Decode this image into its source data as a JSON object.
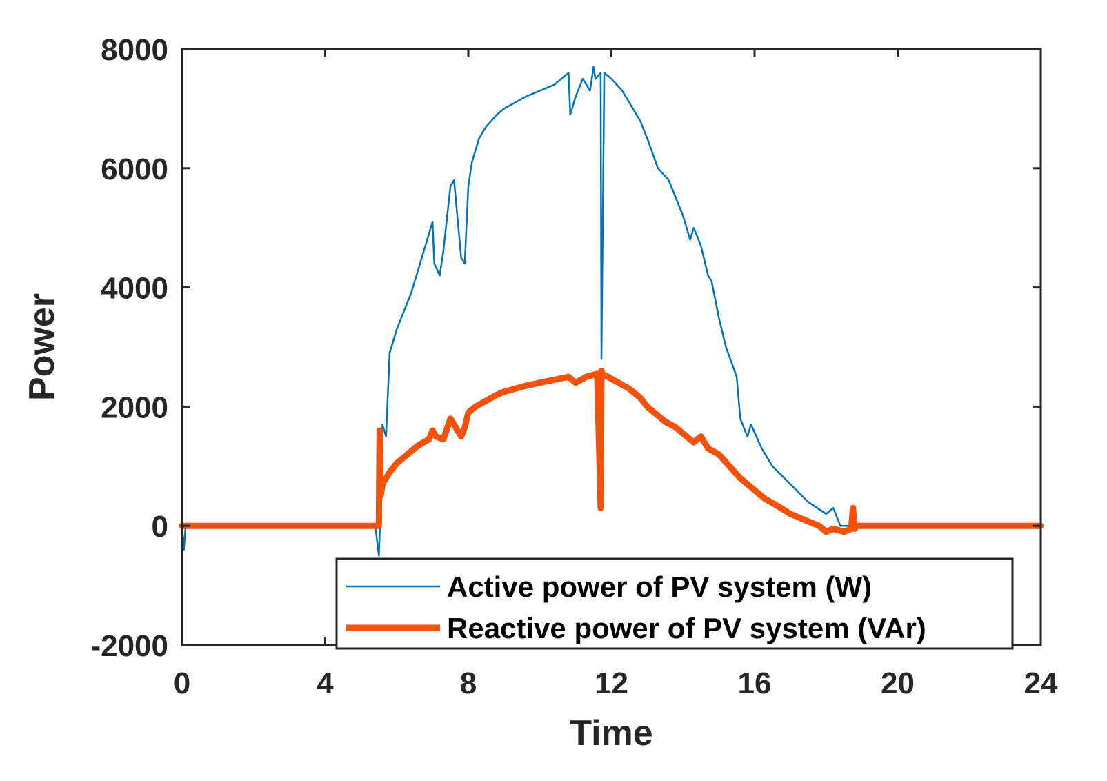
{
  "chart_data": {
    "type": "line",
    "title": "",
    "xlabel": "Time",
    "ylabel": "Power",
    "xlim": [
      0,
      24
    ],
    "ylim": [
      -2000,
      8000
    ],
    "xticks": [
      0,
      4,
      8,
      12,
      16,
      20,
      24
    ],
    "yticks": [
      -2000,
      0,
      2000,
      4000,
      6000,
      8000
    ],
    "xtick_labels": [
      "0",
      "4",
      "8",
      "12",
      "16",
      "20",
      "24"
    ],
    "ytick_labels": [
      "-2000",
      "0",
      "2000",
      "4000",
      "6000",
      "8000"
    ],
    "grid": false,
    "legend_position": "bottom-right",
    "series": [
      {
        "name": "Active power of PV system (W)",
        "color": "#0072BD",
        "x": [
          0,
          0.05,
          0.1,
          5.4,
          5.5,
          5.55,
          5.6,
          5.7,
          5.8,
          5.9,
          6.0,
          6.2,
          6.4,
          6.6,
          6.8,
          7.0,
          7.05,
          7.2,
          7.3,
          7.5,
          7.6,
          7.8,
          7.9,
          8.0,
          8.1,
          8.3,
          8.5,
          8.8,
          9.0,
          9.3,
          9.6,
          10.0,
          10.4,
          10.8,
          10.85,
          11.0,
          11.2,
          11.4,
          11.5,
          11.55,
          11.7,
          11.72,
          11.8,
          12.0,
          12.3,
          12.6,
          12.8,
          13.0,
          13.3,
          13.6,
          14.0,
          14.2,
          14.3,
          14.5,
          14.7,
          14.8,
          15.0,
          15.2,
          15.5,
          15.6,
          15.8,
          15.9,
          16.2,
          16.5,
          17.0,
          17.5,
          18.0,
          18.2,
          18.4,
          18.6,
          19.0,
          20,
          22,
          24
        ],
        "y": [
          0,
          -400,
          0,
          0,
          -500,
          300,
          1700,
          1500,
          2900,
          3100,
          3300,
          3600,
          3900,
          4300,
          4700,
          5100,
          4400,
          4200,
          4600,
          5700,
          5800,
          4500,
          4400,
          5700,
          6100,
          6500,
          6700,
          6900,
          7000,
          7100,
          7200,
          7300,
          7400,
          7600,
          6900,
          7200,
          7500,
          7300,
          7700,
          7500,
          7600,
          2800,
          7600,
          7500,
          7300,
          7000,
          6800,
          6500,
          6000,
          5800,
          5200,
          4800,
          5000,
          4700,
          4200,
          4100,
          3500,
          3000,
          2500,
          1800,
          1500,
          1700,
          1300,
          1000,
          700,
          400,
          200,
          300,
          0,
          0,
          0,
          0,
          0,
          0
        ]
      },
      {
        "name": "Reactive power of PV system (VAr)",
        "color": "#F5510A",
        "x": [
          0,
          5.4,
          5.5,
          5.52,
          5.55,
          5.6,
          5.8,
          6.0,
          6.3,
          6.6,
          6.9,
          7.0,
          7.1,
          7.3,
          7.5,
          7.6,
          7.8,
          7.9,
          8.0,
          8.2,
          8.5,
          8.8,
          9.0,
          9.3,
          9.6,
          10.0,
          10.4,
          10.8,
          11.0,
          11.3,
          11.6,
          11.7,
          11.72,
          11.75,
          11.9,
          12.2,
          12.5,
          12.8,
          13.0,
          13.3,
          13.5,
          13.8,
          14.0,
          14.3,
          14.5,
          14.7,
          15.0,
          15.3,
          15.6,
          16.0,
          16.3,
          16.6,
          17.0,
          17.4,
          17.8,
          18.0,
          18.2,
          18.5,
          18.7,
          18.75,
          18.8,
          18.85,
          19.0,
          20,
          22,
          24
        ],
        "y": [
          0,
          0,
          0,
          1600,
          500,
          700,
          900,
          1050,
          1200,
          1350,
          1450,
          1600,
          1500,
          1450,
          1800,
          1700,
          1500,
          1650,
          1900,
          2000,
          2100,
          2200,
          2250,
          2300,
          2350,
          2400,
          2450,
          2500,
          2400,
          2500,
          2550,
          300,
          2600,
          2550,
          2500,
          2400,
          2300,
          2150,
          2000,
          1850,
          1750,
          1650,
          1550,
          1400,
          1500,
          1300,
          1200,
          1000,
          800,
          600,
          450,
          350,
          200,
          100,
          0,
          -100,
          -50,
          -100,
          -50,
          300,
          -50,
          0,
          0,
          0,
          0,
          0
        ]
      }
    ]
  }
}
